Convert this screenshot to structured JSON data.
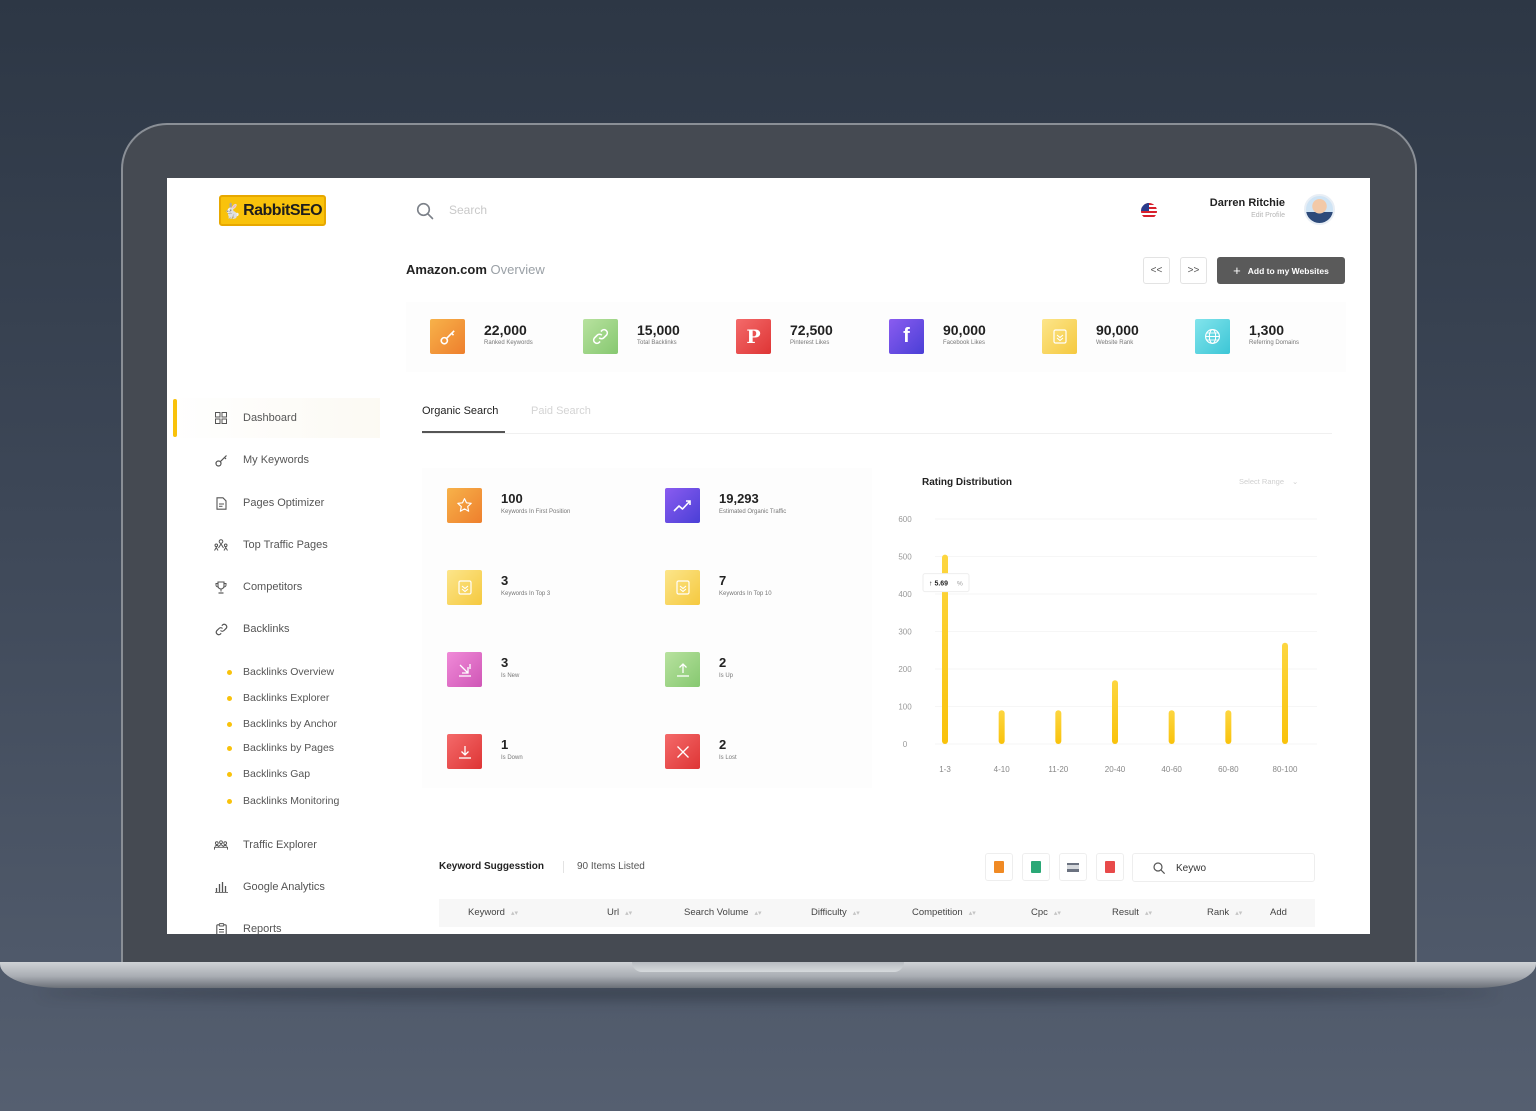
{
  "brand": {
    "name": "RabbitSEO"
  },
  "header": {
    "search_placeholder": "Search",
    "user_name": "Darren Ritchie",
    "user_edit": "Edit Profile"
  },
  "sidebar": {
    "items": [
      {
        "label": "Dashboard",
        "icon": "grid-icon"
      },
      {
        "label": "My Keywords",
        "icon": "key-icon"
      },
      {
        "label": "Pages Optimizer",
        "icon": "file-icon"
      },
      {
        "label": "Top Traffic Pages",
        "icon": "people-icon"
      },
      {
        "label": "Competitors",
        "icon": "trophy-icon"
      },
      {
        "label": "Backlinks",
        "icon": "link-icon"
      },
      {
        "label": "Traffic Explorer",
        "icon": "traffic-icon"
      },
      {
        "label": "Google Analytics",
        "icon": "bar-chart-icon"
      },
      {
        "label": "Reports",
        "icon": "clipboard-icon"
      }
    ],
    "backlinks_sub": [
      "Backlinks Overview",
      "Backlinks Explorer",
      "Backlinks by Anchor",
      "Backlinks by Pages",
      "Backlinks Gap",
      "Backlinks Monitoring"
    ]
  },
  "page": {
    "site": "Amazon.com",
    "subtitle": "Overview",
    "prev_label": "<<",
    "next_label": ">>",
    "add_label": "Add to my Websites"
  },
  "stats": [
    {
      "value": "22,000",
      "label": "Ranked Keywords",
      "icon": "key-icon",
      "color": "#f29a3b"
    },
    {
      "value": "15,000",
      "label": "Total Backlinks",
      "icon": "link-icon",
      "color": "#9fd48a"
    },
    {
      "value": "72,500",
      "label": "Pinterest Likes",
      "icon": "pinterest-icon",
      "color": "#e84a4a"
    },
    {
      "value": "90,000",
      "label": "Facebook Likes",
      "icon": "facebook-icon",
      "color": "#6a4fe0"
    },
    {
      "value": "90,000",
      "label": "Website Rank",
      "icon": "rank-badge-icon",
      "color": "#f9d865"
    },
    {
      "value": "1,300",
      "label": "Referring Domains",
      "icon": "globe-icon",
      "color": "#5fd3e0"
    }
  ],
  "tabs": {
    "organic": "Organic Search",
    "paid": "Paid Search"
  },
  "metrics": [
    {
      "value": "100",
      "label": "Keywords In First Position",
      "icon": "star-icon",
      "color": "#f29a3b"
    },
    {
      "value": "19,293",
      "label": "Estimated Organic Traffic",
      "icon": "trend-up-icon",
      "color": "#6a4fe0"
    },
    {
      "value": "3",
      "label": "Keywords In Top 3",
      "icon": "rank-badge-icon",
      "color": "#f9d865"
    },
    {
      "value": "7",
      "label": "Keywords In Top 10",
      "icon": "rank-badge-icon",
      "color": "#f9d865"
    },
    {
      "value": "3",
      "label": "Is New",
      "icon": "arrow-down-right-icon",
      "color": "#e36fc7"
    },
    {
      "value": "2",
      "label": "Is Up",
      "icon": "arrow-up-icon",
      "color": "#9fd48a"
    },
    {
      "value": "1",
      "label": "Is Down",
      "icon": "arrow-down-icon",
      "color": "#e84a4a"
    },
    {
      "value": "2",
      "label": "Is Lost",
      "icon": "close-icon",
      "color": "#e84a4a"
    }
  ],
  "chart_data": {
    "type": "bar",
    "title": "Rating Distribution",
    "range_label": "Select Range",
    "categories": [
      "1-3",
      "4-10",
      "11-20",
      "20-40",
      "40-60",
      "60-80",
      "80-100"
    ],
    "values": [
      505,
      90,
      90,
      170,
      90,
      90,
      270
    ],
    "ylim": [
      0,
      600
    ],
    "yticks": [
      0,
      100,
      200,
      300,
      400,
      500,
      600
    ],
    "bar_color": "#f9c20b",
    "tooltip": {
      "category": "1-3",
      "text": "5.69",
      "unit": "%"
    }
  },
  "keywords": {
    "title": "Keyword Suggesstion",
    "count": "90 Items Listed",
    "search_value": "Keywo",
    "exports": [
      {
        "icon": "orange-file-icon",
        "color": "#f08a24"
      },
      {
        "icon": "green-file-icon",
        "color": "#2aa876"
      },
      {
        "icon": "print-icon",
        "color": "#6b7280"
      },
      {
        "icon": "pdf-icon",
        "color": "#e84a4a"
      }
    ],
    "columns": [
      "Keyword",
      "Url",
      "Search Volume",
      "Difficulty",
      "Competition",
      "Cpc",
      "Result",
      "Rank",
      "Add"
    ]
  }
}
